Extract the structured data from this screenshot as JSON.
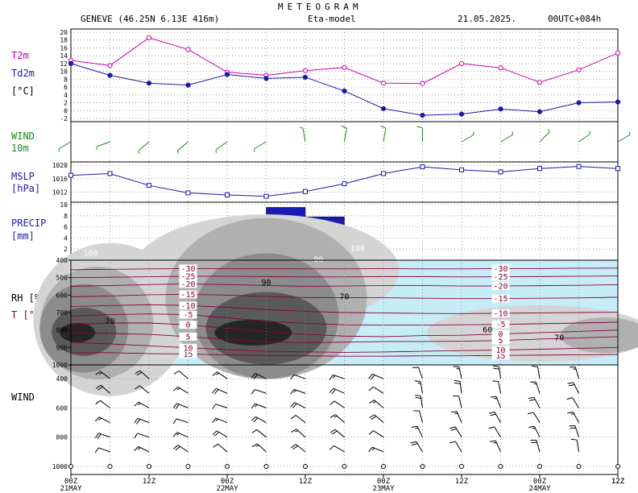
{
  "header": {
    "title": "METEOGRAM",
    "station": "GENEVE (46.25N 6.13E  416m)",
    "model": "Eta-model",
    "date": "21.05.2025.",
    "run": "00UTC+084h"
  },
  "panels": {
    "temp_label1": "T2m",
    "temp_label2": "Td2m",
    "temp_unit": "[°C]",
    "wind10_label1": "WIND",
    "wind10_label2": "10m",
    "mslp_label1": "MSLP",
    "mslp_label2": "[hPa]",
    "precip_label1": "PRECIP",
    "precip_label2": "[mm]",
    "rh_label1": "RH [%]",
    "rh_label2": "T [°C]",
    "wind_profile_label": "WIND"
  },
  "colors": {
    "t2m": "#cc00aa",
    "td2m": "#1a1aa0",
    "wind10": "#1a8a1a",
    "mslp": "#1a1aa0",
    "precip": "#1a1ab4",
    "temp_contour": "#8a0040",
    "rh_light": "#c6ecf7"
  },
  "chart_data": {
    "x_ticks": [
      "00Z",
      "12Z",
      "00Z",
      "12Z",
      "00Z",
      "12Z",
      "00Z",
      "12Z"
    ],
    "x_days": [
      "21MAY",
      "22MAY",
      "23MAY",
      "24MAY"
    ],
    "x_hours": [
      0,
      6,
      12,
      18,
      24,
      30,
      36,
      42,
      48,
      54,
      60,
      66,
      72,
      78,
      84
    ],
    "temperature": {
      "type": "line",
      "ylim": [
        -2,
        20
      ],
      "yticks": [
        -2,
        0,
        2,
        4,
        6,
        8,
        10,
        12,
        14,
        16,
        18,
        20
      ],
      "series": [
        {
          "name": "T2m",
          "values": [
            12.8,
            11.5,
            18.6,
            15.6,
            9.8,
            9.0,
            10.2,
            11.0,
            7.0,
            6.9,
            12.0,
            10.9,
            7.2,
            10.4,
            14.7
          ]
        },
        {
          "name": "Td2m",
          "values": [
            12.0,
            9.0,
            7.0,
            6.5,
            9.2,
            8.2,
            8.5,
            5.0,
            0.5,
            -1.2,
            -0.9,
            0.4,
            -0.3,
            2.0,
            2.2
          ]
        }
      ]
    },
    "wind10m": {
      "type": "barbs",
      "barbs": [
        {
          "dir": 240,
          "speed": 5
        },
        {
          "dir": 250,
          "speed": 5
        },
        {
          "dir": 230,
          "speed": 5
        },
        {
          "dir": 230,
          "speed": 5
        },
        {
          "dir": 235,
          "speed": 5
        },
        {
          "dir": 240,
          "speed": 5
        },
        {
          "dir": 350,
          "speed": 5
        },
        {
          "dir": 10,
          "speed": 10
        },
        {
          "dir": 10,
          "speed": 10
        },
        {
          "dir": 0,
          "speed": 10
        },
        {
          "dir": 60,
          "speed": 5
        },
        {
          "dir": 60,
          "speed": 5
        },
        {
          "dir": 45,
          "speed": 5
        },
        {
          "dir": 55,
          "speed": 5
        },
        {
          "dir": 60,
          "speed": 5
        }
      ]
    },
    "mslp": {
      "type": "line",
      "ylim": [
        1010,
        1020
      ],
      "yticks": [
        1012,
        1016,
        1020
      ],
      "values": [
        1017.0,
        1017.5,
        1014.0,
        1011.8,
        1011.2,
        1010.8,
        1012.2,
        1014.5,
        1017.5,
        1019.5,
        1018.6,
        1018.0,
        1019.0,
        1019.6,
        1019.0
      ]
    },
    "precip": {
      "type": "bar",
      "ylim": [
        0,
        10
      ],
      "yticks": [
        2,
        4,
        6,
        8,
        10
      ],
      "values": [
        0.0,
        0.1,
        0.1,
        0.2,
        0.8,
        9.5,
        7.8,
        2.0,
        0.0,
        0.0,
        0.0,
        0.0,
        0.0,
        0.0
      ]
    },
    "rh_temp": {
      "type": "contour",
      "pressure_ticks": [
        400,
        500,
        600,
        700,
        800,
        900,
        1000
      ],
      "rh_levels": [
        60,
        70,
        90,
        100
      ],
      "temp_levels": [
        -30,
        -25,
        -20,
        -15,
        -10,
        -5,
        0,
        5,
        10,
        15
      ],
      "temp_contours": [
        {
          "level": 15,
          "p": [
            930,
            930,
            935,
            938,
            942,
            946,
            948,
            950,
            950,
            948,
            948,
            946,
            944,
            942,
            940
          ]
        },
        {
          "level": 10,
          "p": [
            870,
            880,
            890,
            902,
            912,
            922,
            925,
            928,
            926,
            922,
            918,
            915,
            910,
            905,
            900
          ]
        },
        {
          "level": 5,
          "p": [
            815,
            820,
            825,
            838,
            855,
            868,
            872,
            870,
            866,
            866,
            864,
            860,
            852,
            845,
            838
          ]
        },
        {
          "level": 0,
          "p": [
            770,
            760,
            760,
            770,
            790,
            808,
            825,
            835,
            838,
            832,
            830,
            823,
            815,
            808,
            800
          ]
        },
        {
          "level": -5,
          "p": [
            720,
            712,
            708,
            712,
            730,
            750,
            762,
            770,
            772,
            772,
            770,
            768,
            764,
            760,
            755
          ]
        },
        {
          "level": -10,
          "p": [
            665,
            660,
            655,
            660,
            670,
            683,
            693,
            700,
            702,
            705,
            706,
            704,
            702,
            700,
            698
          ]
        },
        {
          "level": -15,
          "p": [
            610,
            605,
            598,
            596,
            600,
            608,
            614,
            615,
            615,
            618,
            620,
            620,
            618,
            616,
            612
          ]
        },
        {
          "level": -20,
          "p": [
            550,
            545,
            540,
            536,
            540,
            545,
            550,
            548,
            545,
            545,
            548,
            548,
            546,
            544,
            540
          ]
        },
        {
          "level": -25,
          "p": [
            500,
            498,
            495,
            492,
            492,
            494,
            496,
            496,
            494,
            494,
            496,
            495,
            494,
            492,
            490
          ]
        },
        {
          "level": -30,
          "p": [
            455,
            452,
            450,
            448,
            448,
            448,
            450,
            450,
            448,
            450,
            450,
            448,
            448,
            446,
            445
          ]
        }
      ]
    },
    "wind_profile": {
      "type": "barbs",
      "pressure_ticks": [
        400,
        600,
        800,
        1000
      ],
      "levels": [
        400,
        500,
        600,
        700,
        800,
        900
      ]
    }
  }
}
